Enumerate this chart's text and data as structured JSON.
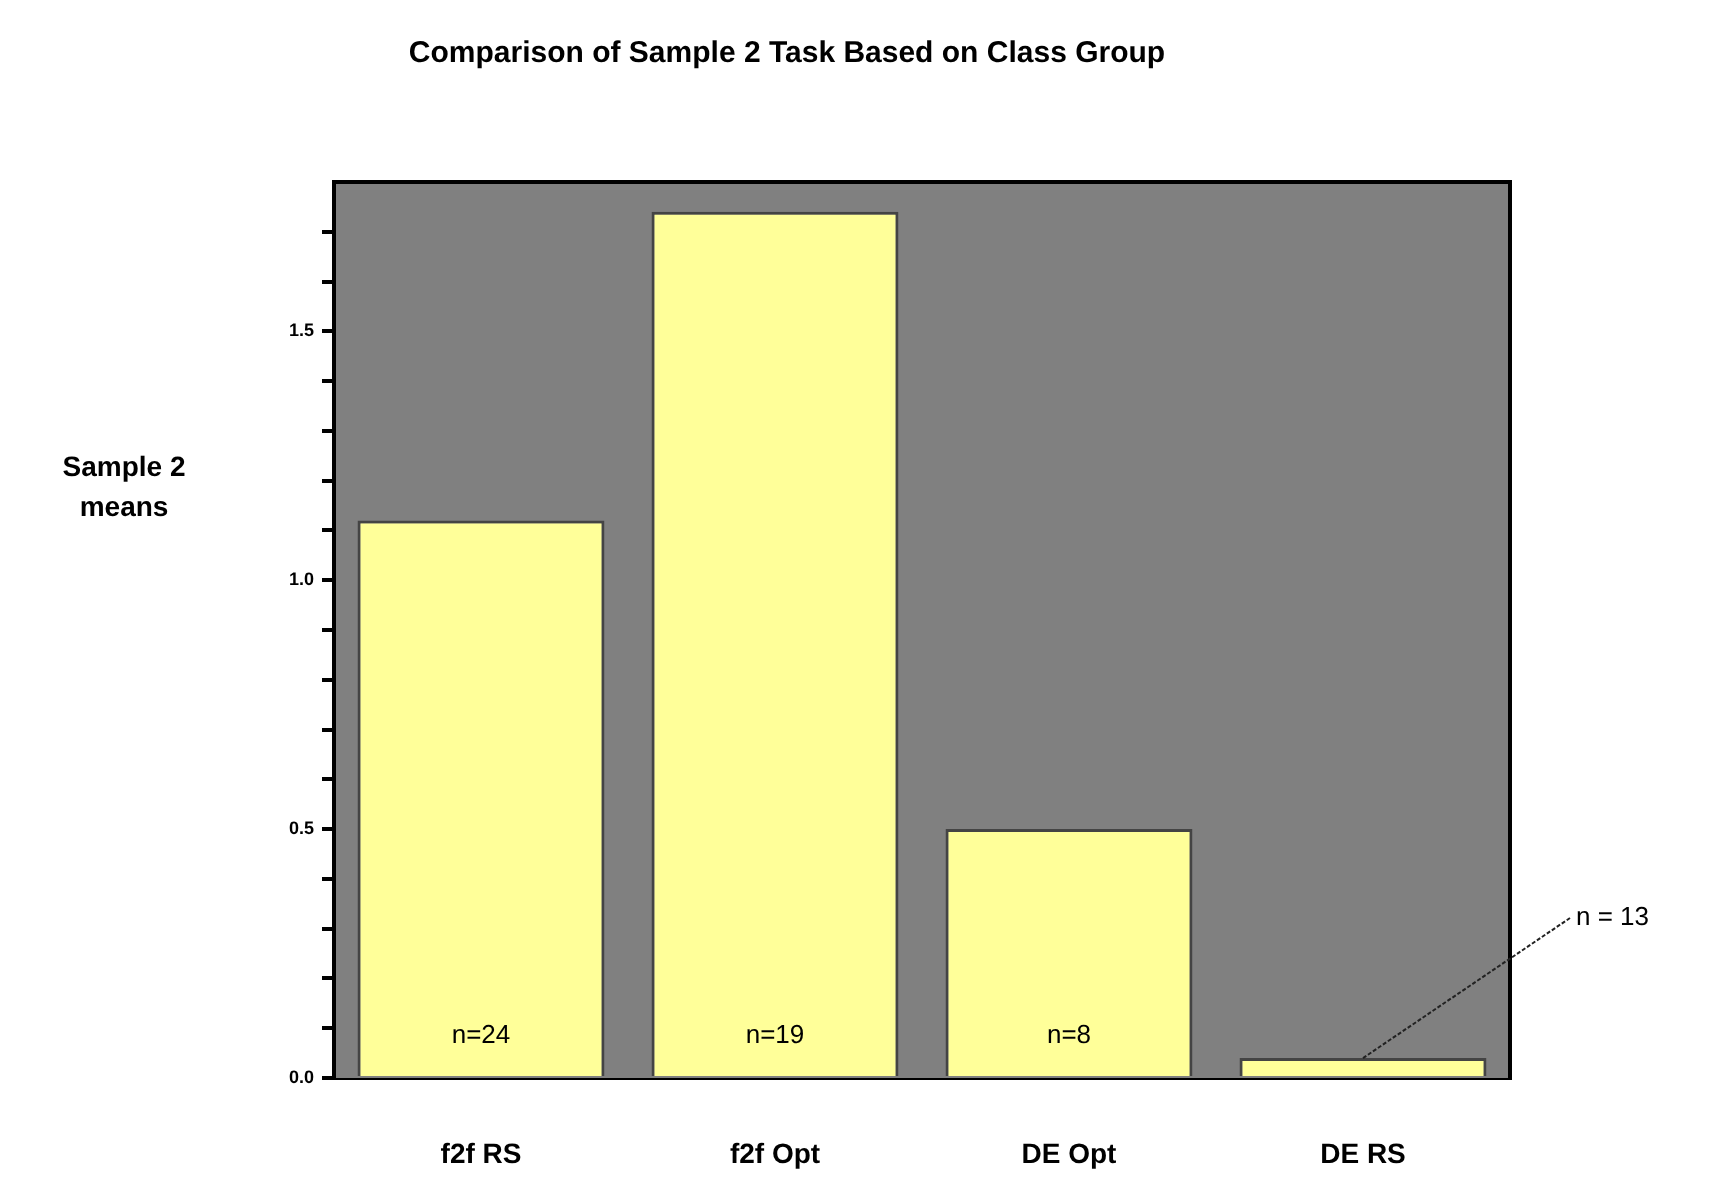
{
  "chart_data": {
    "type": "bar",
    "title": "Comparison of Sample 2 Task Based on Class Group",
    "ylabel": "Sample 2\nmeans",
    "categories": [
      "f2f RS",
      "f2f Opt",
      "DE Opt",
      "DE RS"
    ],
    "values": [
      1.12,
      1.74,
      0.5,
      0.04
    ],
    "color": "#ffff99",
    "ylim": [
      0,
      1.8
    ],
    "yticks": [
      {
        "value": 0,
        "label": "0.0"
      },
      {
        "value": 0.1,
        "label": null
      },
      {
        "value": 0.2,
        "label": null
      },
      {
        "value": 0.3,
        "label": null
      },
      {
        "value": 0.4,
        "label": null
      },
      {
        "value": 0.5,
        "label": "0.5"
      },
      {
        "value": 0.6,
        "label": null
      },
      {
        "value": 0.7,
        "label": null
      },
      {
        "value": 0.8,
        "label": null
      },
      {
        "value": 0.9,
        "label": null
      },
      {
        "value": 1.0,
        "label": "1.0"
      },
      {
        "value": 1.1,
        "label": null
      },
      {
        "value": 1.2,
        "label": null
      },
      {
        "value": 1.3,
        "label": null
      },
      {
        "value": 1.4,
        "label": null
      },
      {
        "value": 1.5,
        "label": "1.5"
      },
      {
        "value": 1.6,
        "label": null
      },
      {
        "value": 1.7,
        "label": null
      }
    ],
    "annotations": [
      "n=24",
      "n=19",
      "n=8",
      {
        "text": "n = 13",
        "x": "DE RS",
        "y": 0.04
      }
    ],
    "grid": false,
    "legend": false
  }
}
